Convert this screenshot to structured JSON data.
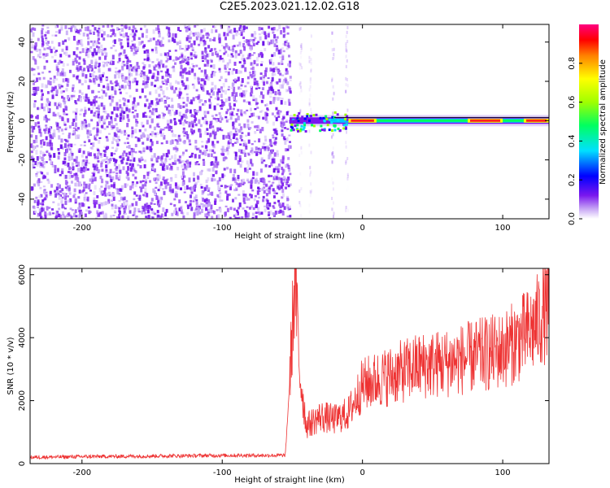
{
  "title": "C2E5.2023.021.12.02.G18",
  "colors": {
    "snr_line": "#ee3333",
    "spectrum_base": "#7a18ee",
    "center_line": "#000000"
  },
  "chart_data": [
    {
      "type": "heatmap",
      "xlabel": "Height of straight line (km)",
      "ylabel": "Frequency (Hz)",
      "xlim": [
        -237,
        133
      ],
      "ylim": [
        -50,
        49
      ],
      "xticks": [
        -200,
        -100,
        0,
        100
      ],
      "yticks": [
        -40,
        -20,
        0,
        20,
        40
      ],
      "colorbar": {
        "label": "Normalized spectral amplitude",
        "range": [
          0,
          1
        ],
        "ticks": [
          "0.0",
          "0.2",
          "0.4",
          "0.6",
          "0.8"
        ],
        "tick_values": [
          0.0,
          0.2,
          0.4,
          0.6,
          0.8
        ]
      },
      "noise_region_end_km": -52,
      "signal_start_km": -52,
      "trace_frequency_hz": 0,
      "trace_peak_segments_km": [
        [
          -10,
          10
        ],
        [
          75,
          100
        ],
        [
          115,
          133
        ]
      ]
    },
    {
      "type": "line",
      "xlabel": "Height of straight line (km)",
      "ylabel": "SNR (10 * v/v)",
      "xlim": [
        -237,
        133
      ],
      "ylim": [
        0,
        6200
      ],
      "xticks": [
        -200,
        -100,
        0,
        100
      ],
      "yticks": [
        0,
        2000,
        4000,
        6000
      ],
      "series": [
        {
          "x": [
            -237,
            -200,
            -150,
            -100,
            -55,
            -52,
            -48,
            -45,
            -40,
            -30,
            -20,
            -10,
            0,
            20,
            40,
            60,
            80,
            100,
            120,
            133
          ],
          "y": [
            200,
            220,
            240,
            260,
            260,
            2500,
            6100,
            3000,
            1200,
            1500,
            1400,
            1600,
            2500,
            2800,
            3100,
            3200,
            3400,
            3600,
            4200,
            5000
          ]
        }
      ]
    }
  ]
}
